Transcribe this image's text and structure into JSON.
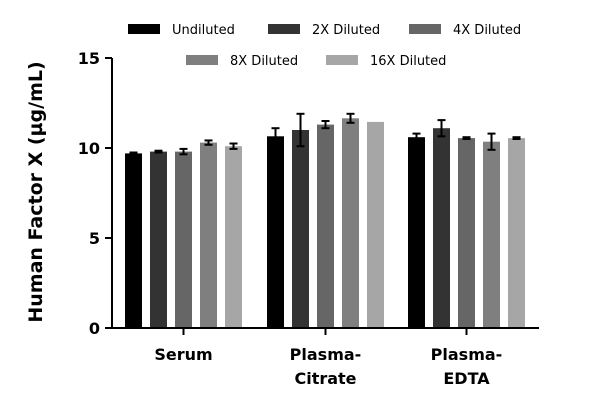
{
  "chart_data": {
    "type": "bar",
    "title": "",
    "xlabel": "",
    "ylabel": "Human Factor X (µg/mL)",
    "ylim": [
      0,
      15
    ],
    "yticks": [
      "0",
      "5",
      "10",
      "15"
    ],
    "categories": [
      {
        "line1": "Serum",
        "line2": ""
      },
      {
        "line1": "Plasma-",
        "line2": "Citrate"
      },
      {
        "line1": "Plasma-",
        "line2": "EDTA"
      }
    ],
    "series": [
      {
        "name": "Undiluted",
        "color": "#000000",
        "values": [
          9.7,
          10.65,
          10.6
        ],
        "errors": [
          0.05,
          0.45,
          0.2
        ]
      },
      {
        "name": "2X Diluted",
        "color": "#333333",
        "values": [
          9.8,
          11.0,
          11.1
        ],
        "errors": [
          0.05,
          0.9,
          0.45
        ]
      },
      {
        "name": "4X Diluted",
        "color": "#666666",
        "values": [
          9.8,
          11.3,
          10.55
        ],
        "errors": [
          0.15,
          0.2,
          0.05
        ]
      },
      {
        "name": "8X Diluted",
        "color": "#7f7f7f",
        "values": [
          10.3,
          11.65,
          10.35
        ],
        "errors": [
          0.12,
          0.25,
          0.45
        ]
      },
      {
        "name": "16X Diluted",
        "color": "#a6a6a6",
        "values": [
          10.1,
          11.45,
          10.55
        ],
        "errors": [
          0.15,
          0.0,
          0.05
        ]
      }
    ],
    "legend_position": "top",
    "grid": false
  }
}
